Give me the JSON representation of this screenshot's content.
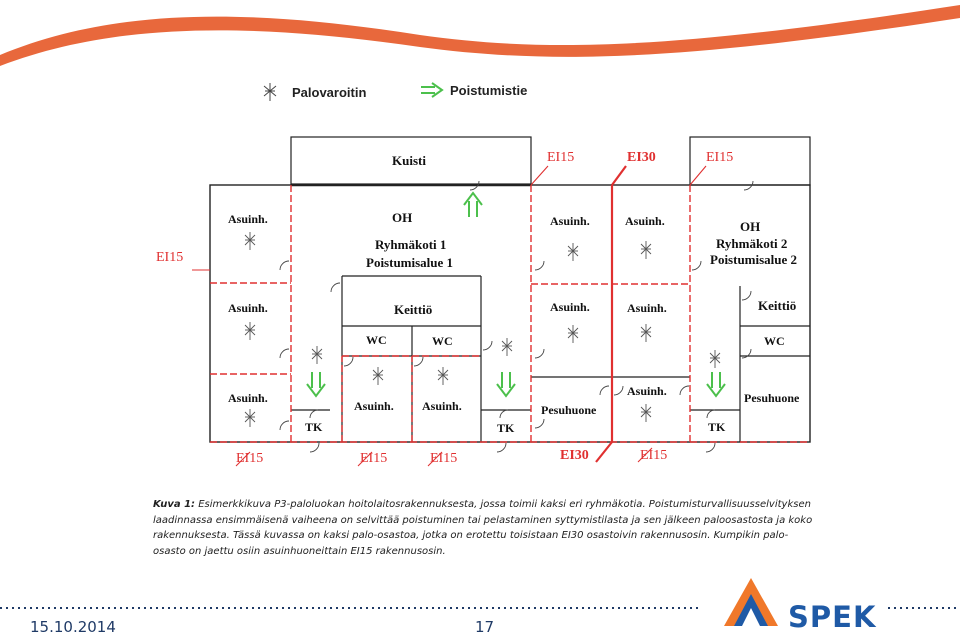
{
  "legend": {
    "detector_label": "Palovaroitin",
    "exit_label": "Poistumistie"
  },
  "plan": {
    "rooms": {
      "kuisti": "Kuisti",
      "asuinh": "Asuinh.",
      "oh_left": "OH",
      "group_left": "Ryhmäkoti 1",
      "zone_left": "Poistumisalue 1",
      "oh_right": "OH",
      "group_right": "Ryhmäkoti 2",
      "zone_right": "Poistumisalue 2",
      "keittio": "Keittiö",
      "wc": "WC",
      "tk": "TK",
      "pesuhuone": "Pesuhuone"
    },
    "fire_classes": {
      "ei15": "EI15",
      "ei30": "EI30"
    }
  },
  "caption": {
    "prefix": "Kuva 1:",
    "text": " Esimerkkikuva P3-paloluokan hoitolaitosrakennuksesta, jossa toimii kaksi eri ryhmäkotia. Poistumisturvallisuusselvityksen laadinnassa ensimmäisenä vaiheena on selvittää poistuminen tai pelastaminen syttymistilasta ja sen jälkeen paloosastosta ja koko rakennuksesta. Tässä kuvassa on kaksi palo-osastoa, jotka on erotettu toisistaan EI30 osastoivin rakennusosin. Kumpikin palo-osasto on jaettu osiin asuinhuoneittain EI15 rakennusosin."
  },
  "footer": {
    "date": "15.10.2014",
    "page": "17",
    "brand": "SPEK"
  },
  "colors": {
    "swoosh": "#e8683c",
    "fire_line": "#e03030",
    "exit_arrow": "#4cc04c",
    "brand_blue": "#1f5aa6",
    "brand_orange": "#f0782a",
    "dots": "#1f3a66"
  }
}
